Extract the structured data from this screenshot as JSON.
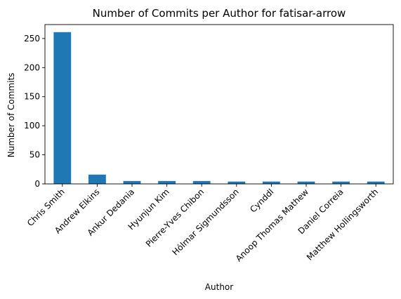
{
  "chart_data": {
    "type": "bar",
    "title": "Number of Commits per Author for fatisar-arrow",
    "xlabel": "Author",
    "ylabel": "Number of Commits",
    "categories": [
      "Chris Smith",
      "Andrew Elkins",
      "Ankur Dedania",
      "Hyunjun Kim",
      "Pierre-Yves Chibon",
      "Hólmar Sigmundsson",
      "Cynddl",
      "Anoop Thomas Mathew",
      "Daniel Correia",
      "Matthew Hollingsworth"
    ],
    "values": [
      261,
      16,
      5,
      5,
      5,
      4,
      4,
      4,
      4,
      4
    ],
    "ylim": [
      0,
      274
    ],
    "yticks": [
      0,
      50,
      100,
      150,
      200,
      250
    ],
    "grid": false,
    "bar_color": "#1f77b4"
  }
}
